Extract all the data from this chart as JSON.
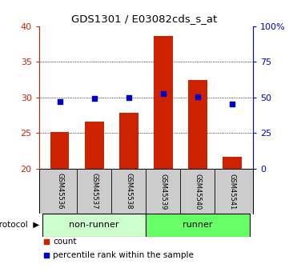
{
  "title": "GDS1301 / E03082cds_s_at",
  "samples": [
    "GSM45536",
    "GSM45537",
    "GSM45538",
    "GSM45539",
    "GSM45540",
    "GSM45541"
  ],
  "counts": [
    25.2,
    26.6,
    27.9,
    38.6,
    32.5,
    21.7
  ],
  "percentiles_right": [
    47.0,
    49.5,
    49.8,
    52.5,
    50.5,
    45.5
  ],
  "groups": [
    "non-runner",
    "non-runner",
    "non-runner",
    "runner",
    "runner",
    "runner"
  ],
  "group_colors": {
    "non-runner": "#ccffcc",
    "runner": "#66ff66"
  },
  "ylim_left": [
    20,
    40
  ],
  "ylim_right": [
    0,
    100
  ],
  "yticks_left": [
    20,
    25,
    30,
    35,
    40
  ],
  "yticks_right": [
    0,
    25,
    50,
    75,
    100
  ],
  "yticklabels_right": [
    "0",
    "25",
    "50",
    "75",
    "100%"
  ],
  "bar_color": "#cc2200",
  "dot_color": "#0000cc",
  "bar_width": 0.55,
  "background_color": "#ffffff",
  "plot_bg": "#ffffff",
  "left_axis_color": "#cc2200",
  "right_axis_color": "#0000cc",
  "label_row_bg": "#cccccc",
  "gridline_yticks": [
    25,
    30,
    35
  ]
}
